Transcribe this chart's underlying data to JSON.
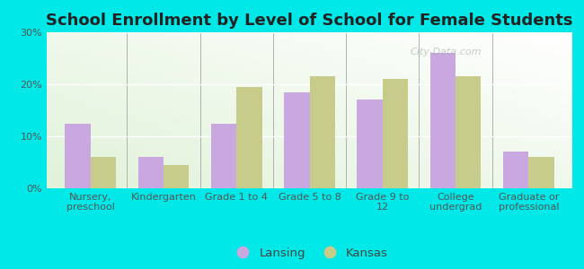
{
  "title": "School Enrollment by Level of School for Female Students",
  "categories": [
    "Nursery,\npreschool",
    "Kindergarten",
    "Grade 1 to 4",
    "Grade 5 to 8",
    "Grade 9 to\n12",
    "College\nundergrad",
    "Graduate or\nprofessional"
  ],
  "lansing": [
    12.5,
    6.0,
    12.5,
    18.5,
    17.0,
    26.0,
    7.0
  ],
  "kansas": [
    6.0,
    4.5,
    19.5,
    21.5,
    21.0,
    21.5,
    6.0
  ],
  "lansing_color": "#c9a8e0",
  "kansas_color": "#c8cc8a",
  "background_outer": "#00e8e8",
  "ylim": [
    0,
    30
  ],
  "yticks": [
    0,
    10,
    20,
    30
  ],
  "ytick_labels": [
    "0%",
    "10%",
    "20%",
    "30%"
  ],
  "bar_width": 0.35,
  "legend_labels": [
    "Lansing",
    "Kansas"
  ],
  "title_fontsize": 13,
  "tick_fontsize": 8,
  "legend_fontsize": 9.5
}
